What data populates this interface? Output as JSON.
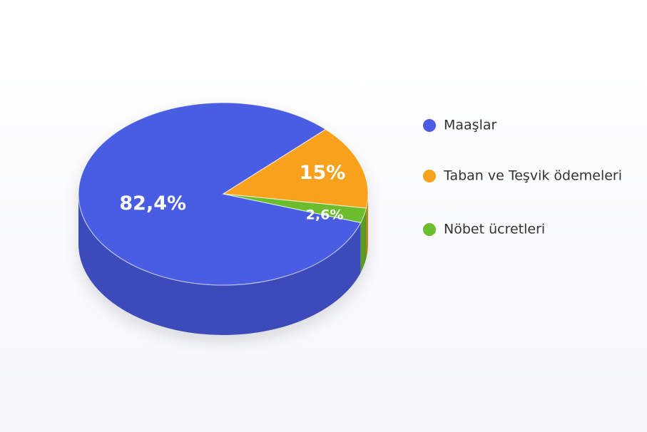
{
  "chart_data": {
    "type": "pie",
    "categories": [
      "Maaşlar",
      "Taban ve Teşvik ödemeleri",
      "Nöbet ücretleri"
    ],
    "values": [
      82.4,
      15,
      2.6
    ],
    "value_labels": [
      "82,4%",
      "15%",
      "2,6%"
    ],
    "colors": [
      "#4a5de3",
      "#f8a11c",
      "#6cbd2f"
    ],
    "legend": "right"
  }
}
